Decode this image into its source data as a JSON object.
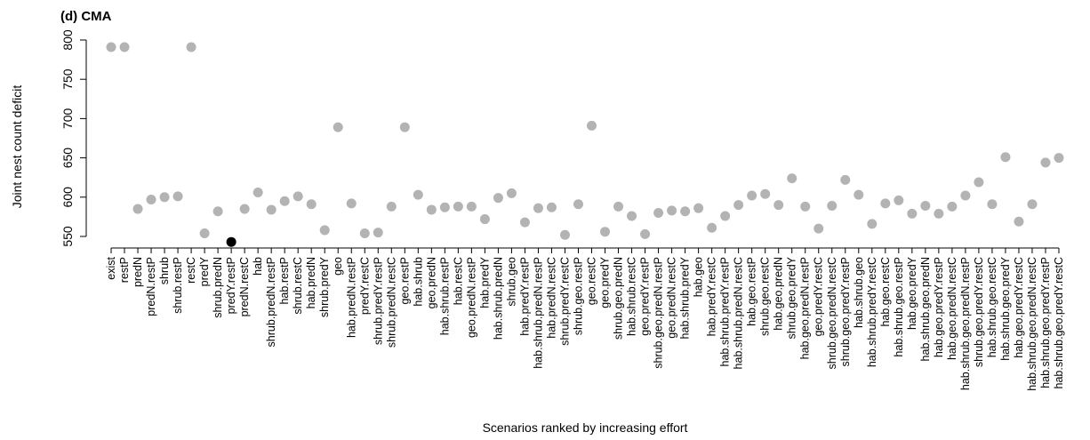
{
  "chart_data": {
    "type": "scatter",
    "title": "(d) CMA",
    "xlabel": "Scenarios ranked by increasing effort",
    "ylabel": "Joint nest count deficit",
    "ylim": [
      540,
      800
    ],
    "yticks": [
      550,
      600,
      650,
      700,
      750,
      800
    ],
    "grid": false,
    "colors": {
      "default": "#b3b3b3",
      "highlight": "#000000"
    },
    "highlight_category": "predY.restP",
    "categories": [
      "exist",
      "restP",
      "predN",
      "predN.restP",
      "shrub",
      "shrub.restP",
      "restC",
      "predY",
      "shrub.predN",
      "predY.restP",
      "predN.restC",
      "hab",
      "shrub.predN.restP",
      "hab.restP",
      "shrub.restC",
      "hab.predN",
      "shrub.predY",
      "geo",
      "hab.predN.restP",
      "predY.restC",
      "shrub.predY.restP",
      "shrub.predN.restC",
      "geo.restP",
      "hab.shrub",
      "geo.predN",
      "hab.shrub.restP",
      "hab.restC",
      "geo.predN.restP",
      "hab.predY",
      "hab.shrub.predN",
      "shrub.geo",
      "hab.predY.restP",
      "hab.shrub.predN.restP",
      "hab.predN.restC",
      "shrub.predY.restC",
      "shrub.geo.restP",
      "geo.restC",
      "geo.predY",
      "shrub.geo.predN",
      "hab.shrub.restC",
      "geo.predY.restP",
      "shrub.geo.predN.restP",
      "geo.predN.restC",
      "hab.shrub.predY",
      "hab.geo",
      "hab.predY.restC",
      "hab.shrub.predY.restP",
      "hab.shrub.predN.restC",
      "hab.geo.restP",
      "shrub.geo.restC",
      "hab.geo.predN",
      "shrub.geo.predY",
      "hab.geo.predN.restP",
      "geo.predY.restC",
      "shrub.geo.predN.restC",
      "shrub.geo.predY.restP",
      "hab.shrub.geo",
      "hab.shrub.predY.restC",
      "hab.geo.restC",
      "hab.shrub.geo.restP",
      "hab.geo.predY",
      "hab.shrub.geo.predN",
      "hab.geo.predY.restP",
      "hab.geo.predN.restC",
      "hab.shrub.geo.predN.restP",
      "shrub.geo.predY.restC",
      "hab.shrub.geo.restC",
      "hab.shrub.geo.predY",
      "hab.geo.predY.restC",
      "hab.shrub.geo.predN.restC",
      "hab.shrub.geo.predY.restP",
      "hab.shrub.geo.predY.restC"
    ],
    "values": [
      791,
      791,
      585,
      597,
      600,
      601,
      791,
      554,
      582,
      543,
      585,
      606,
      584,
      595,
      601,
      591,
      558,
      689,
      592,
      554,
      555,
      588,
      689,
      603,
      584,
      587,
      588,
      588,
      572,
      599,
      605,
      568,
      586,
      587,
      552,
      591,
      691,
      556,
      588,
      576,
      553,
      580,
      583,
      582,
      586,
      561,
      576,
      590,
      602,
      604,
      590,
      624,
      588,
      560,
      589,
      622,
      603,
      566,
      592,
      596,
      579,
      589,
      579,
      588,
      602,
      619,
      591,
      651,
      569,
      591,
      644,
      650
    ]
  }
}
